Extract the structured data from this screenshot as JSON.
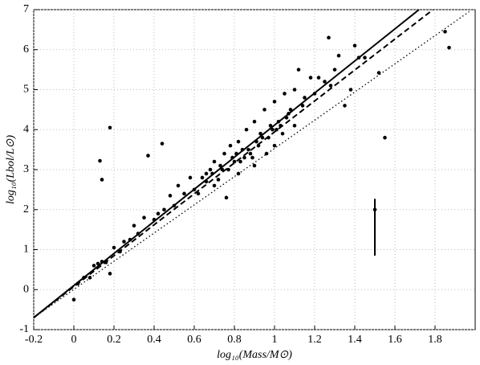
{
  "chart_data": {
    "type": "scatter",
    "xlabel": "log₁₀(Mass/M⊙)",
    "ylabel": "log₁₀(Lbol/L⊙)",
    "xlim": [
      -0.2,
      2.0
    ],
    "ylim": [
      -1,
      7
    ],
    "xticks": [
      -0.2,
      0,
      0.2,
      0.4,
      0.6,
      0.8,
      1,
      1.2,
      1.4,
      1.6,
      1.8
    ],
    "yticks": [
      -1,
      0,
      1,
      2,
      3,
      4,
      5,
      6,
      7
    ],
    "grid": true,
    "color": "#000000",
    "x": [
      0,
      0.02,
      0.05,
      0.08,
      0.1,
      0.12,
      0.13,
      0.14,
      0.14,
      0.16,
      0.18,
      0.18,
      0.2,
      0.23,
      0.25,
      0.28,
      0.3,
      0.32,
      0.35,
      0.37,
      0.4,
      0.42,
      0.44,
      0.45,
      0.48,
      0.5,
      0.52,
      0.55,
      0.58,
      0.6,
      0.62,
      0.64,
      0.66,
      0.68,
      0.7,
      0.7,
      0.72,
      0.74,
      0.75,
      0.76,
      0.78,
      0.8,
      0.82,
      0.82,
      0.84,
      0.85,
      0.86,
      0.88,
      0.9,
      0.9,
      0.92,
      0.94,
      0.95,
      0.96,
      0.98,
      1.0,
      1.0,
      1.02,
      1.04,
      1.05,
      1.06,
      1.08,
      1.1,
      1.1,
      1.12,
      1.14,
      1.15,
      1.18,
      1.2,
      1.22,
      1.25,
      1.27,
      1.28,
      1.3,
      1.32,
      1.35,
      1.38,
      1.4,
      1.42,
      1.45,
      1.52,
      1.55,
      1.85,
      1.87,
      0.66,
      0.69,
      0.73,
      0.77,
      0.79,
      0.81,
      0.83,
      0.87,
      0.89,
      0.91,
      0.93,
      0.97,
      0.99,
      1.01,
      1.03,
      1.07
    ],
    "values": [
      -0.25,
      0.15,
      0.3,
      0.3,
      0.6,
      0.65,
      3.22,
      2.75,
      0.7,
      0.68,
      4.05,
      0.4,
      1.05,
      0.95,
      1.2,
      1.25,
      1.6,
      1.4,
      1.8,
      3.35,
      1.75,
      1.9,
      3.65,
      2.0,
      2.35,
      2.1,
      2.6,
      2.4,
      2.8,
      2.5,
      2.4,
      2.8,
      2.9,
      3.0,
      2.6,
      3.2,
      2.75,
      3.0,
      3.4,
      2.3,
      3.6,
      3.2,
      2.9,
      3.7,
      3.5,
      3.3,
      4.0,
      3.4,
      4.2,
      3.1,
      3.6,
      3.8,
      4.5,
      3.4,
      4.1,
      4.7,
      3.6,
      4.2,
      3.9,
      4.9,
      4.3,
      4.5,
      5.0,
      4.1,
      5.5,
      4.6,
      4.8,
      5.3,
      4.9,
      5.3,
      5.2,
      6.3,
      5.1,
      5.5,
      5.85,
      4.6,
      5.0,
      6.1,
      5.8,
      5.8,
      5.42,
      3.8,
      6.45,
      6.05,
      2.7,
      2.9,
      3.1,
      3.0,
      3.3,
      3.4,
      3.2,
      3.5,
      3.3,
      3.7,
      3.9,
      3.8,
      4.0,
      4.0,
      4.1,
      4.4
    ],
    "lines": [
      {
        "x": [
          -0.2,
          1.72
        ],
        "values": [
          -0.7,
          7
        ],
        "dash": "solid"
      },
      {
        "x": [
          -0.2,
          1.79
        ],
        "values": [
          -0.7,
          7
        ],
        "dash": "dashed"
      },
      {
        "x": [
          -0.2,
          1.97
        ],
        "values": [
          -0.7,
          6.95
        ],
        "dash": "dotted"
      }
    ],
    "error_point": {
      "x": [
        1.5
      ],
      "values": [
        2
      ],
      "errors_minus": [
        1.15
      ],
      "errors_plus": [
        0.27
      ]
    }
  }
}
